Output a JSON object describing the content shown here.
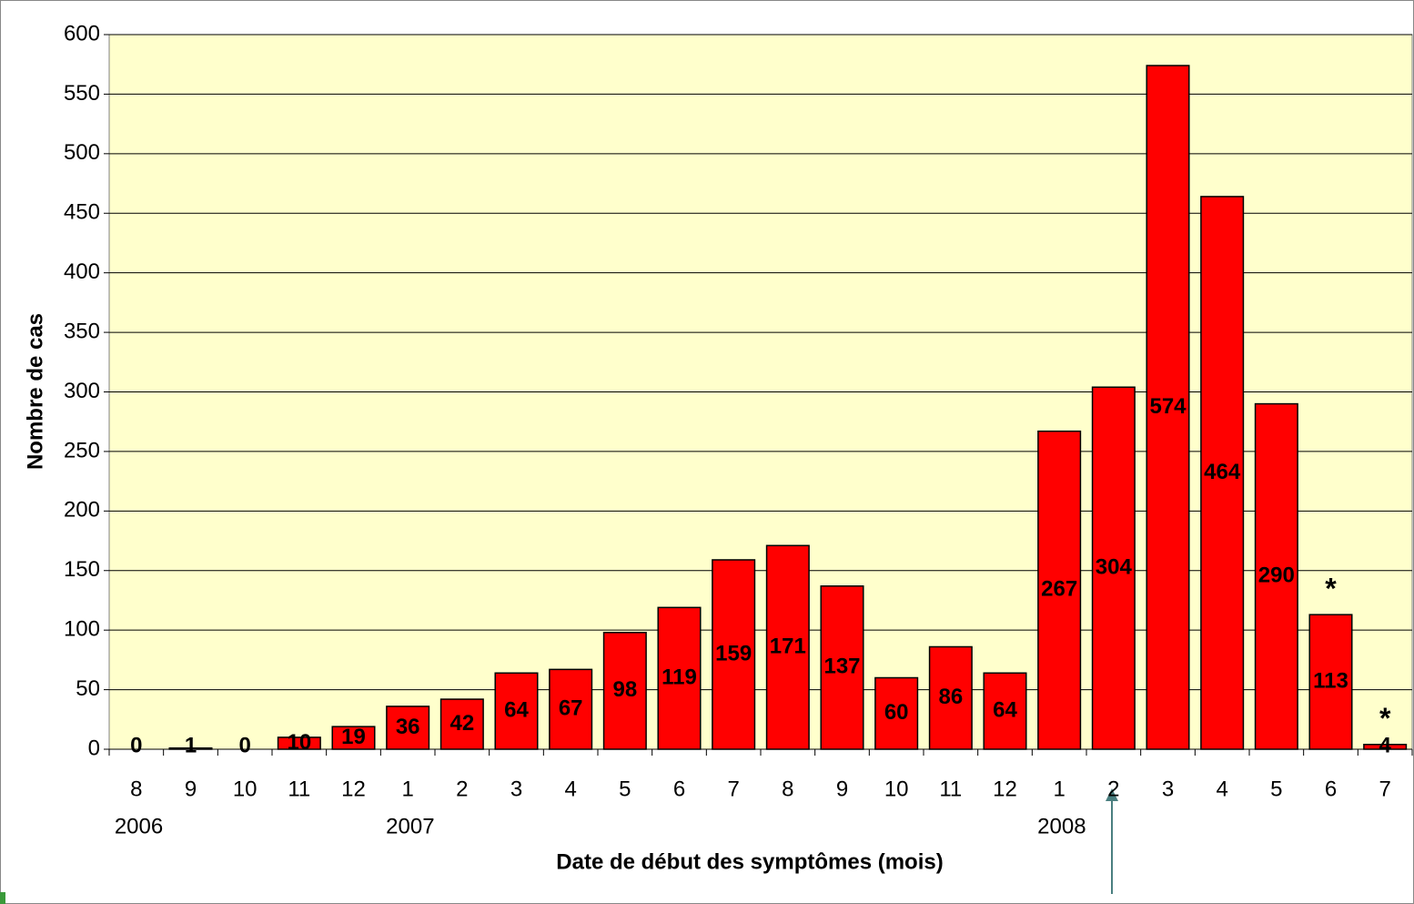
{
  "chart_data": {
    "type": "bar",
    "y_label": "Nombre de cas",
    "x_label": "Date de début des symptômes (mois)",
    "categories": [
      "8",
      "9",
      "10",
      "11",
      "12",
      "1",
      "2",
      "3",
      "4",
      "5",
      "6",
      "7",
      "8",
      "9",
      "10",
      "11",
      "12",
      "1",
      "2",
      "3",
      "4",
      "5",
      "6",
      "7"
    ],
    "groups": [
      {
        "label": "2006",
        "start": 0
      },
      {
        "label": "2007",
        "start": 5
      },
      {
        "label": "2008",
        "start": 17
      }
    ],
    "values": [
      0,
      1,
      0,
      10,
      19,
      36,
      42,
      64,
      67,
      98,
      119,
      159,
      171,
      137,
      60,
      86,
      64,
      267,
      304,
      574,
      464,
      290,
      113,
      4
    ],
    "color": "#ff0000",
    "ylim": [
      0,
      600
    ],
    "yticks": [
      0,
      50,
      100,
      150,
      200,
      250,
      300,
      350,
      400,
      450,
      500,
      550,
      600
    ],
    "grid": true,
    "annotations": [
      {
        "text": "*",
        "index": 22
      },
      {
        "text": "*",
        "index": 23
      }
    ]
  }
}
